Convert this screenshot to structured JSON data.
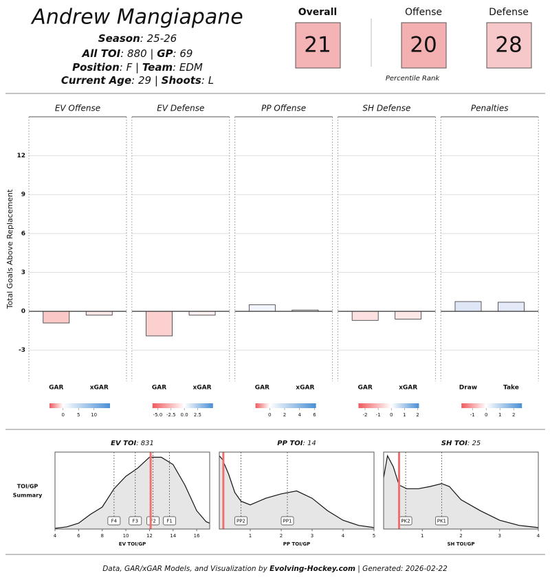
{
  "header": {
    "name": "Andrew Mangiapane",
    "lines": [
      [
        {
          "text": "Season",
          "bold": true
        },
        {
          "text": ": 25-26"
        }
      ],
      [
        {
          "text": "All TOI",
          "bold": true
        },
        {
          "text": ": 880 | "
        },
        {
          "text": "GP",
          "bold": true
        },
        {
          "text": ": 69"
        }
      ],
      [
        {
          "text": "Position",
          "bold": true
        },
        {
          "text": ": F | "
        },
        {
          "text": "Team",
          "bold": true
        },
        {
          "text": ": EDM"
        }
      ],
      [
        {
          "text": "Current Age",
          "bold": true
        },
        {
          "text": ": 29 | "
        },
        {
          "text": "Shoots",
          "bold": true
        },
        {
          "text": ": L"
        }
      ]
    ]
  },
  "ranks": {
    "items": [
      {
        "label": "Overall",
        "value": 21,
        "bold": true,
        "color": "#f4b3b4"
      },
      {
        "label": "Offense",
        "value": 20,
        "color": "#f4b0b1"
      },
      {
        "label": "Defense",
        "value": 28,
        "color": "#f7c8c9"
      }
    ],
    "note": "Percentile Rank"
  },
  "summary_label": [
    "TOI/GP",
    "Summary"
  ],
  "chart_data": [
    {
      "type": "bar",
      "ylabel": "Total Goals Above Replacement",
      "ylim": [
        -5.4,
        15
      ],
      "yticks": [
        -3,
        0,
        3,
        6,
        9,
        12
      ],
      "grid": true,
      "panels": [
        {
          "title": "EV Offense",
          "categories": [
            "GAR",
            "xGAR"
          ],
          "values": [
            -0.9,
            -0.3
          ],
          "colors": [
            "#fbc8c8",
            "#fde6e6"
          ],
          "colorbar": {
            "lim": [
              -4.4,
              15.2
            ],
            "ticks": [
              0,
              5,
              10
            ],
            "colors": [
              "#ef5a5e",
              "#ffffff",
              "#4a8fd4"
            ]
          }
        },
        {
          "title": "EV Defense",
          "categories": [
            "GAR",
            "xGAR"
          ],
          "values": [
            -1.9,
            -0.3
          ],
          "colors": [
            "#fdd0d0",
            "#fdf0f0"
          ],
          "colorbar": {
            "lim": [
              -6,
              5.4
            ],
            "ticks": [
              {
                "value": -5,
                "label": "-5.0"
              },
              {
                "value": -2.5,
                "label": "-2.5"
              },
              {
                "value": 0,
                "label": "0.0"
              },
              {
                "value": 2.5,
                "label": "2.5"
              }
            ],
            "colors": [
              "#ef5a5e",
              "#ffffff",
              "#4a8fd4"
            ]
          }
        },
        {
          "title": "PP Offense",
          "categories": [
            "GAR",
            "xGAR"
          ],
          "values": [
            0.5,
            0.1
          ],
          "colors": [
            "#f3f5fd",
            "#f8f8fc"
          ],
          "colorbar": {
            "lim": [
              -1.9,
              6.2
            ],
            "ticks": [
              0,
              2,
              4,
              6
            ],
            "colors": [
              "#ef5a5e",
              "#ffffff",
              "#4a8fd4"
            ]
          }
        },
        {
          "title": "SH Defense",
          "categories": [
            "GAR",
            "xGAR"
          ],
          "values": [
            -0.7,
            -0.6
          ],
          "colors": [
            "#fde0e0",
            "#fde6e6"
          ],
          "colorbar": {
            "lim": [
              -2.5,
              2.1
            ],
            "ticks": [
              -2,
              -1,
              0,
              1,
              2
            ],
            "colors": [
              "#ef5a5e",
              "#ffffff",
              "#4a8fd4"
            ]
          }
        },
        {
          "title": "Penalties",
          "categories": [
            "Draw",
            "Take"
          ],
          "values": [
            0.75,
            0.7
          ],
          "colors": [
            "#dfe7f7",
            "#e3e9f6"
          ],
          "colorbar": {
            "lim": [
              -1.8,
              2.6
            ],
            "ticks": [
              -1,
              0,
              1,
              2
            ],
            "colors": [
              "#ef5a5e",
              "#ffffff",
              "#4a8fd4"
            ]
          }
        }
      ]
    },
    {
      "type": "density",
      "title": [
        {
          "text": "EV TOI",
          "bold": true
        },
        {
          "text": ": 831"
        }
      ],
      "xlabel": "EV TOI/GP",
      "x": [
        4,
        5,
        6,
        7,
        8,
        9,
        10,
        11,
        12,
        13,
        14,
        15,
        16,
        16.8,
        17.1
      ],
      "y": [
        0.01,
        0.03,
        0.08,
        0.2,
        0.3,
        0.55,
        0.72,
        0.83,
        0.98,
        0.98,
        0.88,
        0.6,
        0.25,
        0.1,
        0.08
      ],
      "xlim": [
        4,
        17.1
      ],
      "xticks": [
        4,
        6,
        8,
        10,
        12,
        14,
        16
      ],
      "ylim": [
        0,
        1.05
      ],
      "player": 12.1,
      "player_color": "#f07070",
      "markers": {
        "labels": [
          "F4",
          "F3",
          "F2",
          "F1"
        ],
        "values": [
          9,
          10.8,
          12.3,
          13.7
        ]
      }
    },
    {
      "type": "density",
      "title": [
        {
          "text": "PP TOI",
          "bold": true
        },
        {
          "text": ": 14"
        }
      ],
      "xlabel": "PP TOI/GP",
      "x": [
        0,
        0.1,
        0.3,
        0.5,
        0.7,
        1,
        1.5,
        2,
        2.5,
        3,
        3.5,
        4,
        4.5,
        5
      ],
      "y": [
        1,
        0.95,
        0.75,
        0.5,
        0.38,
        0.33,
        0.42,
        0.48,
        0.52,
        0.42,
        0.25,
        0.12,
        0.05,
        0.02
      ],
      "xlim": [
        0,
        5
      ],
      "xticks": [
        1,
        2,
        3,
        4,
        5
      ],
      "ylim": [
        0,
        1.05
      ],
      "player": 0.13,
      "player_color": "#f07070",
      "markers": {
        "labels": [
          "PP2",
          "PP1"
        ],
        "values": [
          0.7,
          2.2
        ]
      }
    },
    {
      "type": "density",
      "title": [
        {
          "text": "SH TOI",
          "bold": true
        },
        {
          "text": ": 25"
        }
      ],
      "xlabel": "SH TOI/GP",
      "x": [
        0,
        0.1,
        0.25,
        0.4,
        0.6,
        0.9,
        1.2,
        1.5,
        1.7,
        2,
        2.5,
        3,
        3.5,
        4
      ],
      "y": [
        0.7,
        1,
        0.85,
        0.6,
        0.55,
        0.55,
        0.58,
        0.62,
        0.58,
        0.4,
        0.25,
        0.12,
        0.05,
        0.02
      ],
      "xlim": [
        0,
        4
      ],
      "xticks": [
        1,
        2,
        3,
        4
      ],
      "ylim": [
        0,
        1.05
      ],
      "player": 0.4,
      "player_color": "#f07070",
      "markers": {
        "labels": [
          "PK2",
          "PK1"
        ],
        "values": [
          0.57,
          1.5
        ]
      }
    }
  ],
  "footer": [
    {
      "text": "Data, GAR/xGAR Models, and Visualization by "
    },
    {
      "text": "Evolving-Hockey.com",
      "bold": true
    },
    {
      "text": " | Generated: 2026-02-22"
    }
  ]
}
